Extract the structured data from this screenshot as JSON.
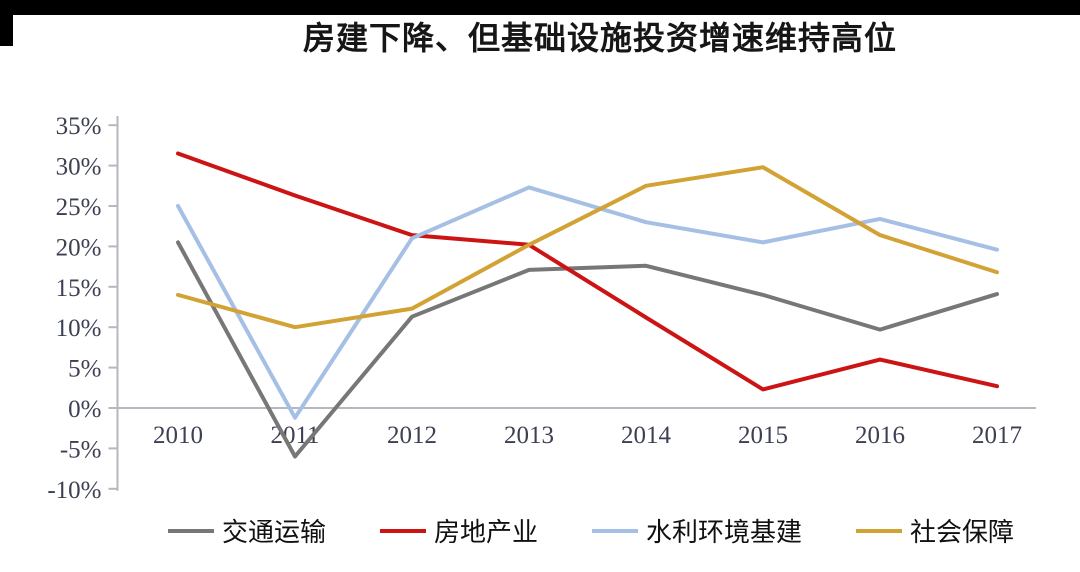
{
  "decor": {
    "top_bar_color": "#000000",
    "corner_block_color": "#000000"
  },
  "chart_data": {
    "type": "line",
    "title": "房建下降、但基础设施投资增速维持高位",
    "x": [
      "2010",
      "2011",
      "2012",
      "2013",
      "2014",
      "2015",
      "2016",
      "2017"
    ],
    "series": [
      {
        "name": "交通运输",
        "color": "#777777",
        "values": [
          20.5,
          -6.0,
          11.3,
          17.1,
          17.6,
          14.0,
          9.7,
          14.1
        ]
      },
      {
        "name": "房地产业",
        "color": "#cc1414",
        "values": [
          31.5,
          26.3,
          21.4,
          20.2,
          11.2,
          2.3,
          6.0,
          2.7
        ]
      },
      {
        "name": "水利环境基建",
        "color": "#a6bfe4",
        "values": [
          25.0,
          -1.2,
          21.0,
          27.3,
          23.0,
          20.5,
          23.4,
          19.6
        ]
      },
      {
        "name": "社会保障",
        "color": "#d2a235",
        "values": [
          14.0,
          10.0,
          12.3,
          20.2,
          27.5,
          29.8,
          21.4,
          16.8
        ]
      }
    ],
    "ylim": [
      -10,
      35
    ],
    "ytick_step": 5,
    "ytick_values": [
      35,
      30,
      25,
      20,
      15,
      10,
      5,
      0,
      -5,
      -10
    ],
    "ytick_labels": [
      "35%",
      "30%",
      "25%",
      "20%",
      "15%",
      "10%",
      "5%",
      "0%",
      "-5%",
      "-10%"
    ],
    "grid": "zero-line-only",
    "legend_position": "bottom",
    "axis_color": "#b7b7bf",
    "label_color": "#3d4053"
  }
}
